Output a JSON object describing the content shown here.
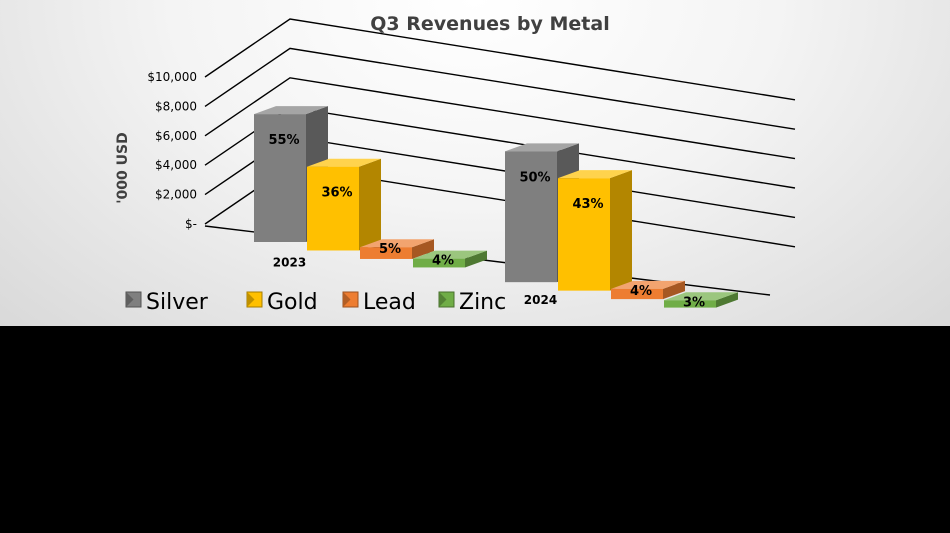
{
  "chart_data": {
    "type": "bar",
    "title": "Q3 Revenues by Metal",
    "ylabel": "'000 USD",
    "ytick_labels": [
      "$-",
      "$2,000",
      "$4,000",
      "$6,000",
      "$8,000",
      "$10,000"
    ],
    "ylim": [
      0,
      10000
    ],
    "categories": [
      "2023",
      "2024"
    ],
    "series": [
      {
        "name": "Silver",
        "color": "#7f7f7f",
        "values": [
          8700,
          8900
        ],
        "labels": [
          "55%",
          "50%"
        ]
      },
      {
        "name": "Gold",
        "color": "#ffc000",
        "values": [
          5700,
          7650
        ],
        "labels": [
          "36%",
          "43%"
        ]
      },
      {
        "name": "Lead",
        "color": "#ed7d31",
        "values": [
          800,
          700
        ],
        "labels": [
          "5%",
          "4%"
        ]
      },
      {
        "name": "Zinc",
        "color": "#70ad47",
        "values": [
          600,
          500
        ],
        "labels": [
          "4%",
          "3%"
        ]
      }
    ],
    "grid": true,
    "legend_position": "bottom-left"
  }
}
